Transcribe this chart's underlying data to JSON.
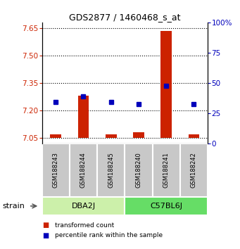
{
  "title": "GDS2877 / 1460468_s_at",
  "samples": [
    "GSM188243",
    "GSM188244",
    "GSM188245",
    "GSM188240",
    "GSM188241",
    "GSM188242"
  ],
  "groups": [
    "DBA2J",
    "DBA2J",
    "DBA2J",
    "C57BL6J",
    "C57BL6J",
    "C57BL6J"
  ],
  "group_names": [
    "DBA2J",
    "C57BL6J"
  ],
  "group_colors_light": [
    "#ccf0aa",
    "#66dd66"
  ],
  "red_values": [
    7.07,
    7.28,
    7.07,
    7.08,
    7.635,
    7.07
  ],
  "blue_values": [
    7.245,
    7.275,
    7.245,
    7.235,
    7.335,
    7.235
  ],
  "ylim_left": [
    7.02,
    7.68
  ],
  "ylim_right": [
    0,
    100
  ],
  "yticks_left": [
    7.05,
    7.2,
    7.35,
    7.5,
    7.65
  ],
  "yticks_right": [
    0,
    25,
    50,
    75,
    100
  ],
  "ylabel_left_color": "#cc2200",
  "ylabel_right_color": "#0000bb",
  "bar_base": 7.05,
  "bar_width": 0.4,
  "strain_label": "strain",
  "legend_red": "transformed count",
  "legend_blue": "percentile rank within the sample",
  "label_box_color": "#c8c8c8",
  "label_box_edge": "#ffffff"
}
